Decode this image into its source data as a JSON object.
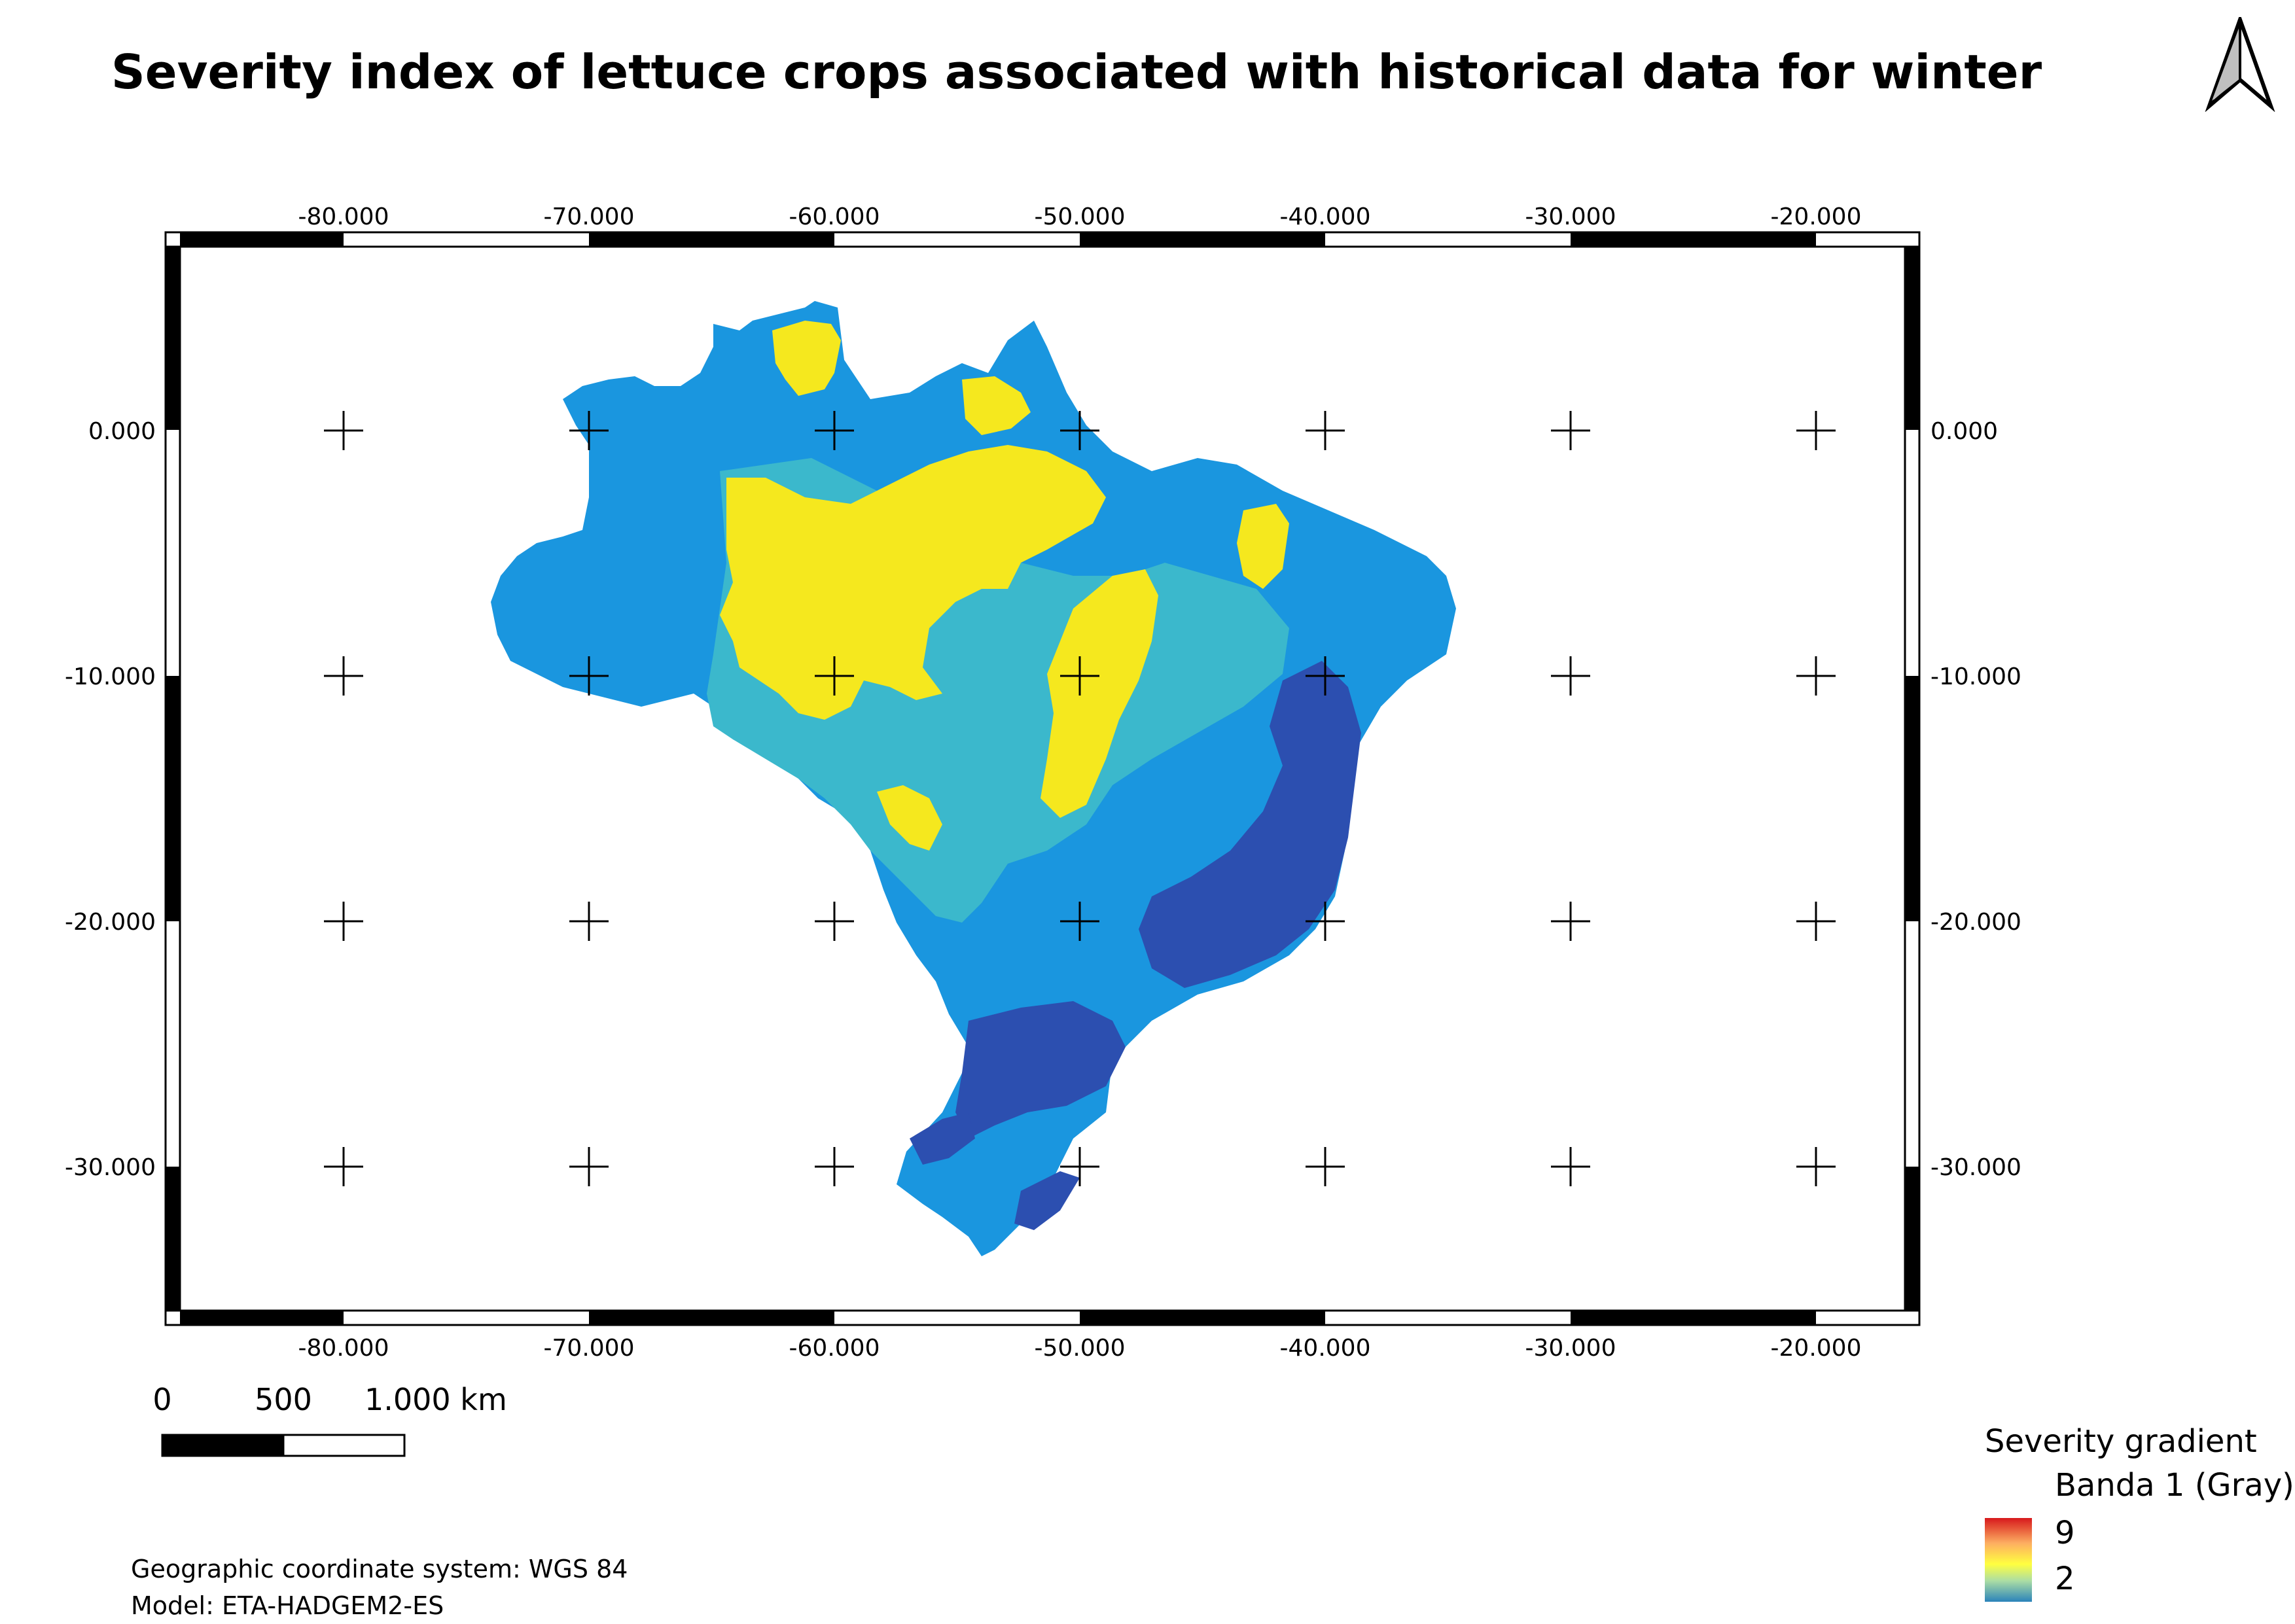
{
  "title": "Severity index of lettuce crops associated with historical data for winter",
  "north_arrow": {
    "icon": "north-arrow-icon"
  },
  "map": {
    "lon_ticks": [
      "-80.000",
      "-70.000",
      "-60.000",
      "-50.000",
      "-40.000",
      "-30.000",
      "-20.000"
    ],
    "lat_ticks": [
      "0.000",
      "-10.000",
      "-20.000",
      "-30.000"
    ],
    "region_colors": {
      "ocean": "#ffffff",
      "medium_blue": "#1a96df",
      "teal": "#3bb8cc",
      "yellow": "#f5e81e",
      "dark_blue": "#2c4fb0"
    }
  },
  "scale_bar": {
    "labels": [
      "0",
      "500",
      "1.000 km"
    ]
  },
  "legend": {
    "title": "Severity gradient",
    "band": "Banda 1 (Gray)",
    "max": "9",
    "min": "2",
    "ramp_colors": [
      "#d7191c",
      "#fdae61",
      "#ffff40",
      "#abdda4",
      "#2b83ba"
    ]
  },
  "footer": {
    "crs": "Geographic coordinate system: WGS 84",
    "model": "Model: ETA-HADGEM2-ES"
  }
}
